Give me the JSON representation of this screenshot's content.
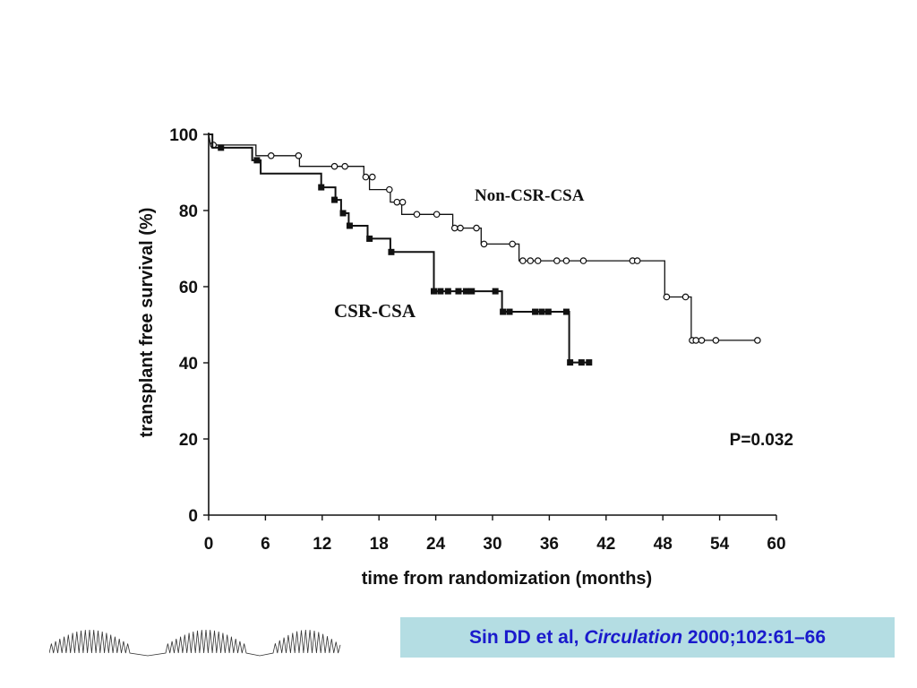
{
  "chart_data": {
    "type": "line",
    "subtype": "kaplan-meier step",
    "xlabel": "time from randomization (months)",
    "ylabel": "transplant free survival (%)",
    "xlim": [
      0,
      60
    ],
    "ylim": [
      0,
      100
    ],
    "x_ticks": [
      "0",
      "6",
      "12",
      "18",
      "24",
      "30",
      "36",
      "42",
      "48",
      "54",
      "60"
    ],
    "y_ticks": [
      "0",
      "20",
      "40",
      "60",
      "80",
      "100"
    ],
    "grid": false,
    "annotation": "P=0.032",
    "series": [
      {
        "name": "Non-CSR-CSA",
        "marker": "open-circle",
        "steps": [
          [
            0,
            100
          ],
          [
            0.2,
            97.2
          ],
          [
            5,
            97.2
          ],
          [
            5,
            94.4
          ],
          [
            9.6,
            94.4
          ],
          [
            9.6,
            91.6
          ],
          [
            16.4,
            91.6
          ],
          [
            16.4,
            88.8
          ],
          [
            17,
            88.8
          ],
          [
            17,
            85.5
          ],
          [
            19.2,
            85.5
          ],
          [
            19.2,
            82.2
          ],
          [
            20.4,
            82.2
          ],
          [
            20.4,
            79
          ],
          [
            25.8,
            79
          ],
          [
            25.8,
            75.4
          ],
          [
            28.8,
            75.4
          ],
          [
            28.8,
            71.2
          ],
          [
            32.8,
            71.2
          ],
          [
            32.8,
            66.8
          ],
          [
            48.2,
            66.8
          ],
          [
            48.2,
            57.3
          ],
          [
            51,
            57.3
          ],
          [
            51,
            45.9
          ],
          [
            58,
            45.9
          ]
        ],
        "censored": [
          [
            0.5,
            97.2
          ],
          [
            6.6,
            94.4
          ],
          [
            9.5,
            94.4
          ],
          [
            13.3,
            91.6
          ],
          [
            14.4,
            91.6
          ],
          [
            16.6,
            88.8
          ],
          [
            17.3,
            88.8
          ],
          [
            19.1,
            85.5
          ],
          [
            19.9,
            82.2
          ],
          [
            20.5,
            82.2
          ],
          [
            22,
            79
          ],
          [
            24.1,
            79
          ],
          [
            26,
            75.4
          ],
          [
            26.6,
            75.4
          ],
          [
            28.3,
            75.4
          ],
          [
            29.1,
            71.2
          ],
          [
            32.1,
            71.2
          ],
          [
            33.2,
            66.8
          ],
          [
            34,
            66.8
          ],
          [
            34.8,
            66.8
          ],
          [
            36.8,
            66.8
          ],
          [
            37.8,
            66.8
          ],
          [
            39.6,
            66.8
          ],
          [
            44.8,
            66.8
          ],
          [
            45.3,
            66.8
          ],
          [
            48.4,
            57.3
          ],
          [
            50.4,
            57.3
          ],
          [
            51.1,
            45.9
          ],
          [
            51.5,
            45.9
          ],
          [
            52.1,
            45.9
          ],
          [
            53.6,
            45.9
          ],
          [
            58,
            45.9
          ]
        ]
      },
      {
        "name": "CSR-CSA",
        "marker": "filled-square",
        "steps": [
          [
            0,
            100
          ],
          [
            0.4,
            100
          ],
          [
            0.4,
            96.5
          ],
          [
            4.6,
            96.5
          ],
          [
            4.6,
            93.2
          ],
          [
            5.5,
            93.2
          ],
          [
            5.5,
            89.7
          ],
          [
            11.9,
            89.7
          ],
          [
            11.9,
            86.1
          ],
          [
            13.4,
            86.1
          ],
          [
            13.4,
            82.8
          ],
          [
            14,
            82.8
          ],
          [
            14,
            79.3
          ],
          [
            14.8,
            79.3
          ],
          [
            14.8,
            76
          ],
          [
            16.8,
            76
          ],
          [
            16.8,
            72.6
          ],
          [
            19.2,
            72.6
          ],
          [
            19.2,
            69.1
          ],
          [
            23.8,
            69.1
          ],
          [
            23.8,
            58.8
          ],
          [
            31,
            58.8
          ],
          [
            31,
            53.4
          ],
          [
            38.1,
            53.4
          ],
          [
            38.1,
            40.1
          ],
          [
            40.3,
            40.1
          ]
        ],
        "censored": [
          [
            1.3,
            96.5
          ],
          [
            5.1,
            93.2
          ],
          [
            11.9,
            86.1
          ],
          [
            13.3,
            82.8
          ],
          [
            14.2,
            79.3
          ],
          [
            14.9,
            76
          ],
          [
            17,
            72.6
          ],
          [
            19.3,
            69.1
          ],
          [
            23.8,
            58.8
          ],
          [
            24.5,
            58.8
          ],
          [
            25.3,
            58.8
          ],
          [
            26.4,
            58.8
          ],
          [
            27.2,
            58.8
          ],
          [
            27.8,
            58.8
          ],
          [
            30.3,
            58.8
          ],
          [
            31.1,
            53.4
          ],
          [
            31.8,
            53.4
          ],
          [
            34.5,
            53.4
          ],
          [
            35.2,
            53.4
          ],
          [
            35.9,
            53.4
          ],
          [
            37.8,
            53.4
          ],
          [
            38.2,
            40.1
          ],
          [
            39.4,
            40.1
          ],
          [
            40.2,
            40.1
          ]
        ]
      }
    ]
  },
  "citation": {
    "authors": "Sin DD et al, ",
    "journal": "Circulation",
    "ref": " 2000;102:61–66"
  }
}
